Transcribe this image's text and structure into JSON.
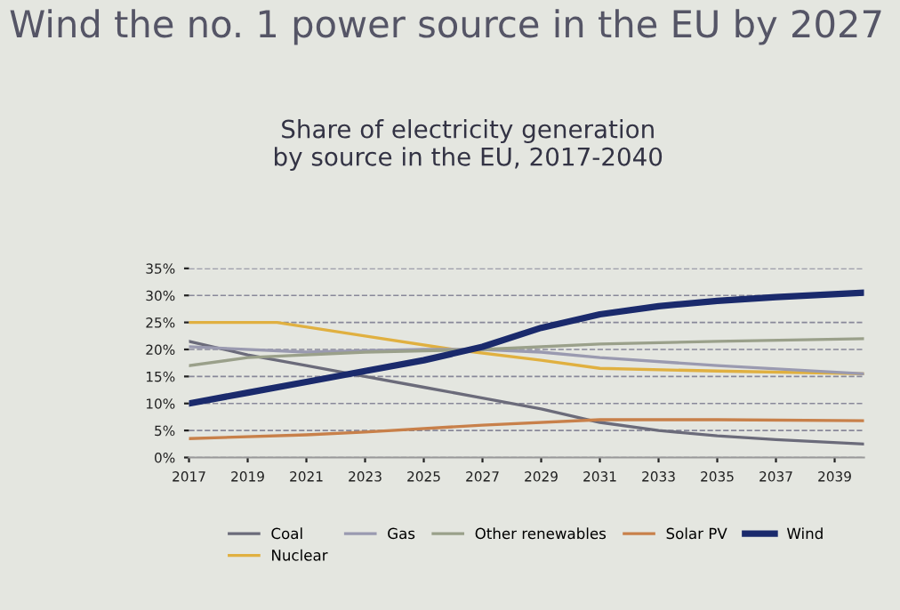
{
  "chart_data": {
    "type": "line",
    "title": "Wind the no. 1 power source in the EU by 2027",
    "subtitle": "Share of electricity generation\nby source in the EU, 2017-2040",
    "series": [
      {
        "name": "Coal",
        "color": "#6b6b7a",
        "x": [
          2017,
          2019,
          2021,
          2023,
          2025,
          2027,
          2029,
          2031,
          2033,
          2035,
          2037,
          2040
        ],
        "values": [
          21.5,
          19,
          17,
          15,
          13,
          11,
          9,
          6.5,
          5,
          4,
          3.3,
          2.5
        ]
      },
      {
        "name": "Nuclear",
        "color": "#e0b040",
        "x": [
          2017,
          2020,
          2023,
          2026,
          2029,
          2031,
          2035,
          2040
        ],
        "values": [
          25,
          25,
          22.5,
          20,
          18,
          16.5,
          16,
          15.5
        ]
      },
      {
        "name": "Gas",
        "color": "#9a9ab0",
        "x": [
          2017,
          2021,
          2025,
          2027,
          2029,
          2031,
          2035,
          2040
        ],
        "values": [
          20.5,
          19.5,
          20,
          20,
          19.5,
          18.5,
          17,
          15.5
        ]
      },
      {
        "name": "Other renewables",
        "color": "#9aa08a",
        "x": [
          2017,
          2019,
          2023,
          2027,
          2031,
          2035,
          2040
        ],
        "values": [
          17,
          18.5,
          19.5,
          20,
          21,
          21.5,
          22
        ]
      },
      {
        "name": "Solar PV",
        "color": "#c8804a",
        "x": [
          2017,
          2021,
          2023,
          2027,
          2031,
          2035,
          2040
        ],
        "values": [
          3.5,
          4.2,
          4.7,
          6,
          7,
          7,
          6.8
        ]
      },
      {
        "name": "Wind",
        "color": "#1a2a6c",
        "x": [
          2017,
          2019,
          2021,
          2023,
          2025,
          2027,
          2029,
          2031,
          2033,
          2035,
          2037,
          2040
        ],
        "values": [
          10,
          12,
          14,
          16,
          18,
          20.5,
          24,
          26.5,
          28,
          29,
          29.7,
          30.5
        ]
      }
    ],
    "xlim": [
      2017,
      2040
    ],
    "xticks": [
      2017,
      2019,
      2021,
      2023,
      2025,
      2027,
      2029,
      2031,
      2033,
      2035,
      2037,
      2039
    ],
    "ylim": [
      0,
      35
    ],
    "yticks": [
      {
        "value": 0,
        "label": "0%"
      },
      {
        "value": 5,
        "label": "5%"
      },
      {
        "value": 10,
        "label": "10%"
      },
      {
        "value": 15,
        "label": "15%"
      },
      {
        "value": 20,
        "label": "20%"
      },
      {
        "value": 25,
        "label": "25%"
      },
      {
        "value": 30,
        "label": "30%"
      },
      {
        "value": 35,
        "label": "35%"
      }
    ],
    "grid": "y",
    "legend": "bottom",
    "marker": "none",
    "line_style": "solid"
  }
}
